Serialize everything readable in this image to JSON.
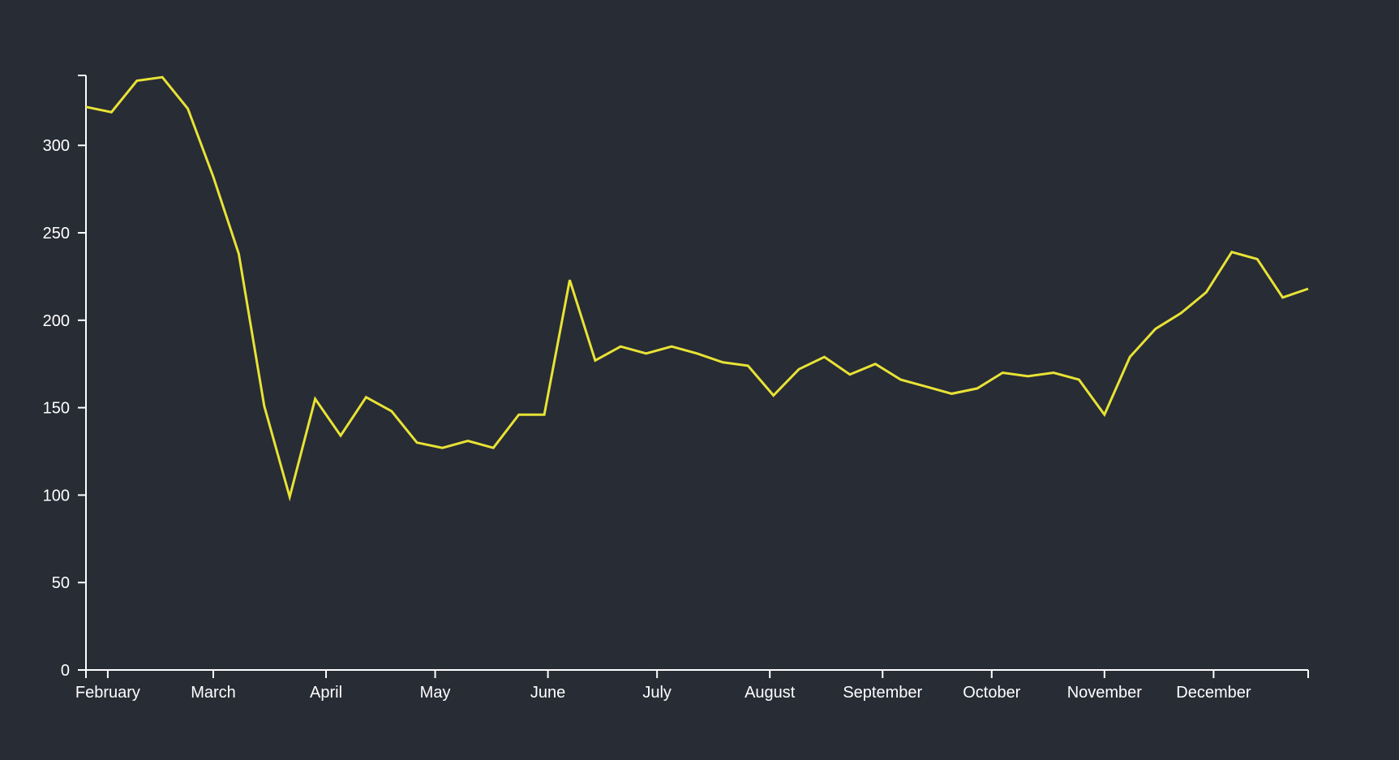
{
  "chart_data": {
    "type": "line",
    "title": "",
    "xlabel": "",
    "ylabel": "",
    "grid": false,
    "legend": "none",
    "ylim": [
      0,
      340
    ],
    "yticks": [
      0,
      50,
      100,
      150,
      200,
      250,
      300
    ],
    "xlim": [
      "2020-01-26",
      "2020-12-27"
    ],
    "xtick_labels": [
      {
        "date": "2020-02-01",
        "label": "February"
      },
      {
        "date": "2020-03-01",
        "label": "March"
      },
      {
        "date": "2020-04-01",
        "label": "April"
      },
      {
        "date": "2020-05-01",
        "label": "May"
      },
      {
        "date": "2020-06-01",
        "label": "June"
      },
      {
        "date": "2020-07-01",
        "label": "July"
      },
      {
        "date": "2020-08-01",
        "label": "August"
      },
      {
        "date": "2020-09-01",
        "label": "September"
      },
      {
        "date": "2020-10-01",
        "label": "October"
      },
      {
        "date": "2020-11-01",
        "label": "November"
      },
      {
        "date": "2020-12-01",
        "label": "December"
      }
    ],
    "colors": {
      "background": "#282c35",
      "line": "#e8e335",
      "axis": "#ffffff"
    },
    "series": [
      {
        "x": [
          "2020-01-26",
          "2020-02-02",
          "2020-02-09",
          "2020-02-16",
          "2020-02-23",
          "2020-03-01",
          "2020-03-08",
          "2020-03-15",
          "2020-03-22",
          "2020-03-29",
          "2020-04-05",
          "2020-04-12",
          "2020-04-19",
          "2020-04-26",
          "2020-05-03",
          "2020-05-10",
          "2020-05-17",
          "2020-05-24",
          "2020-05-31",
          "2020-06-07",
          "2020-06-14",
          "2020-06-21",
          "2020-06-28",
          "2020-07-05",
          "2020-07-12",
          "2020-07-19",
          "2020-07-26",
          "2020-08-02",
          "2020-08-09",
          "2020-08-16",
          "2020-08-23",
          "2020-08-30",
          "2020-09-06",
          "2020-09-13",
          "2020-09-20",
          "2020-09-27",
          "2020-10-04",
          "2020-10-11",
          "2020-10-18",
          "2020-10-25",
          "2020-11-01",
          "2020-11-08",
          "2020-11-15",
          "2020-11-22",
          "2020-11-29",
          "2020-12-06",
          "2020-12-13",
          "2020-12-20",
          "2020-12-27"
        ],
        "values": [
          322,
          319,
          337,
          339,
          321,
          282,
          238,
          151,
          99,
          155,
          134,
          156,
          148,
          130,
          127,
          131,
          127,
          146,
          146,
          223,
          177,
          185,
          181,
          185,
          181,
          176,
          174,
          157,
          172,
          179,
          169,
          175,
          166,
          162,
          158,
          161,
          170,
          168,
          170,
          166,
          146,
          179,
          195,
          204,
          216,
          239,
          235,
          213,
          218
        ]
      }
    ]
  }
}
